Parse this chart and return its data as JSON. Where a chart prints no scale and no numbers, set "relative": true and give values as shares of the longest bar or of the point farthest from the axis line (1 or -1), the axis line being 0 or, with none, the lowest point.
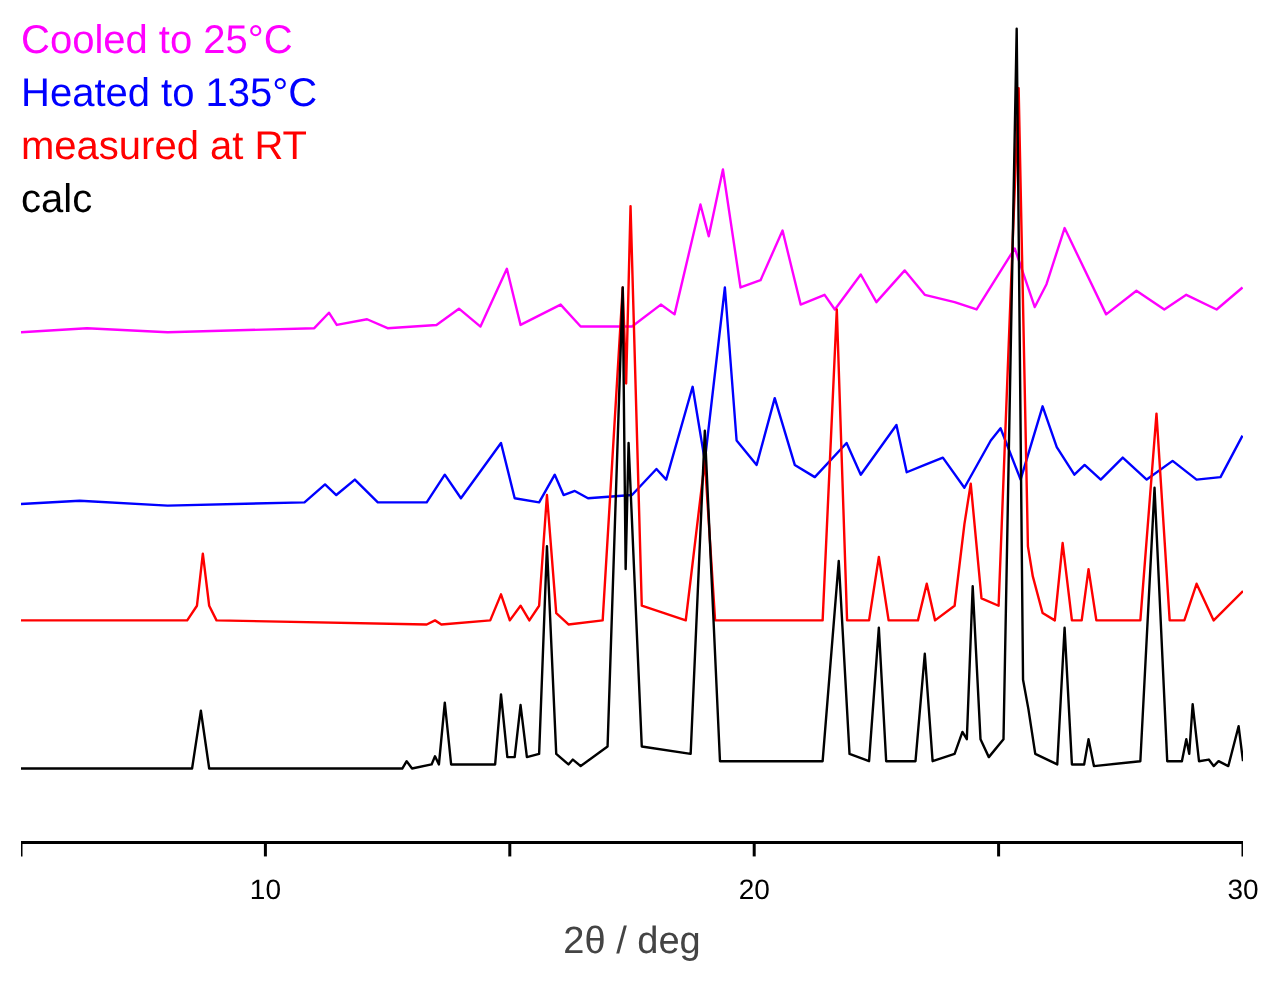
{
  "chart_data": {
    "type": "line",
    "relative": true,
    "xlabel": "2θ / deg",
    "xlim": [
      5,
      30
    ],
    "xticks": [
      {
        "value": 5,
        "label": null
      },
      10,
      {
        "value": 15,
        "label": null
      },
      20,
      {
        "value": 25,
        "label": null
      },
      30
    ],
    "tick_labels": "x",
    "grid": false,
    "marker": "none",
    "line_style": "solid",
    "series": [
      {
        "name": "Cooled to 25°C",
        "color": "#ff00ff",
        "x": [
          5,
          6.35,
          8,
          11.0,
          11.3,
          11.46,
          12.08,
          12.5,
          13.5,
          13.96,
          14.4,
          14.94,
          15.22,
          16.04,
          16.45,
          17.5,
          18.09,
          18.37,
          18.9,
          19.07,
          19.36,
          19.72,
          20.13,
          20.58,
          20.95,
          21.44,
          21.65,
          22.18,
          22.5,
          23.08,
          23.49,
          24.1,
          24.55,
          25.33,
          25.74,
          25.98,
          26.35,
          27.2,
          27.82,
          28.39,
          28.84,
          29.46,
          29.99
        ],
        "values": [
          0.627,
          0.632,
          0.627,
          0.632,
          0.651,
          0.636,
          0.643,
          0.632,
          0.636,
          0.656,
          0.634,
          0.705,
          0.636,
          0.661,
          0.634,
          0.634,
          0.661,
          0.649,
          0.784,
          0.745,
          0.827,
          0.682,
          0.691,
          0.752,
          0.661,
          0.673,
          0.655,
          0.698,
          0.664,
          0.703,
          0.673,
          0.664,
          0.655,
          0.73,
          0.658,
          0.686,
          0.755,
          0.649,
          0.678,
          0.655,
          0.673,
          0.655,
          0.682
        ]
      },
      {
        "name": "Heated to 135°C",
        "color": "#0000ff",
        "x": [
          5,
          6.2,
          8,
          10.8,
          11.22,
          11.45,
          11.83,
          12.3,
          13.3,
          13.67,
          14.0,
          14.82,
          15.1,
          15.6,
          15.92,
          16.1,
          16.33,
          16.6,
          17.5,
          18.0,
          18.2,
          18.74,
          18.99,
          19.4,
          19.64,
          20.05,
          20.42,
          20.83,
          21.24,
          21.89,
          22.18,
          22.91,
          23.12,
          23.49,
          23.86,
          24.3,
          24.84,
          25.04,
          25.45,
          25.9,
          26.19,
          26.55,
          26.76,
          27.09,
          27.54,
          28.03,
          28.56,
          29.05,
          29.54,
          29.99
        ],
        "values": [
          0.416,
          0.42,
          0.414,
          0.418,
          0.44,
          0.427,
          0.446,
          0.418,
          0.418,
          0.452,
          0.423,
          0.491,
          0.423,
          0.418,
          0.452,
          0.427,
          0.432,
          0.423,
          0.427,
          0.459,
          0.446,
          0.56,
          0.469,
          0.682,
          0.494,
          0.464,
          0.546,
          0.464,
          0.449,
          0.491,
          0.452,
          0.513,
          0.455,
          0.464,
          0.473,
          0.436,
          0.494,
          0.509,
          0.446,
          0.536,
          0.486,
          0.452,
          0.464,
          0.446,
          0.473,
          0.446,
          0.469,
          0.446,
          0.449,
          0.5
        ]
      },
      {
        "name": "measured at RT",
        "color": "#ff0000",
        "x": [
          5,
          8.4,
          8.6,
          8.72,
          8.85,
          9.0,
          13.3,
          13.47,
          13.6,
          14.6,
          14.82,
          15.0,
          15.22,
          15.4,
          15.6,
          15.76,
          15.95,
          16.2,
          16.9,
          17.31,
          17.38,
          17.47,
          17.7,
          18.6,
          18.99,
          19.2,
          21.4,
          21.69,
          21.9,
          22.35,
          22.55,
          22.75,
          23.35,
          23.53,
          23.7,
          24.1,
          24.3,
          24.43,
          24.65,
          25.0,
          25.41,
          25.6,
          25.7,
          25.9,
          26.15,
          26.31,
          26.5,
          26.7,
          26.84,
          27.0,
          27.9,
          28.23,
          28.5,
          28.8,
          29.05,
          29.4,
          30
        ],
        "values": [
          0.273,
          0.273,
          0.291,
          0.355,
          0.291,
          0.273,
          0.268,
          0.273,
          0.268,
          0.273,
          0.305,
          0.273,
          0.291,
          0.273,
          0.291,
          0.427,
          0.282,
          0.268,
          0.273,
          0.682,
          0.564,
          0.782,
          0.291,
          0.273,
          0.469,
          0.273,
          0.273,
          0.655,
          0.273,
          0.273,
          0.351,
          0.273,
          0.273,
          0.318,
          0.273,
          0.291,
          0.391,
          0.441,
          0.3,
          0.291,
          0.927,
          0.364,
          0.327,
          0.282,
          0.273,
          0.368,
          0.273,
          0.273,
          0.336,
          0.273,
          0.273,
          0.527,
          0.273,
          0.273,
          0.318,
          0.273,
          0.309
        ]
      },
      {
        "name": "calc",
        "color": "#000000",
        "x": [
          5,
          8.5,
          8.68,
          8.85,
          12.8,
          12.89,
          13.0,
          13.4,
          13.47,
          13.55,
          13.67,
          13.8,
          14.7,
          14.82,
          14.95,
          15.1,
          15.22,
          15.35,
          15.6,
          15.76,
          15.95,
          16.2,
          16.29,
          16.45,
          17.0,
          17.31,
          17.37,
          17.43,
          17.7,
          18.7,
          18.99,
          19.3,
          21.4,
          21.73,
          21.95,
          22.35,
          22.55,
          22.7,
          23.3,
          23.49,
          23.65,
          24.1,
          24.26,
          24.35,
          24.47,
          24.63,
          24.8,
          25.1,
          25.37,
          25.5,
          25.61,
          25.75,
          26.2,
          26.35,
          26.5,
          26.75,
          26.84,
          26.95,
          27.9,
          28.19,
          28.45,
          28.75,
          28.84,
          28.9,
          28.97,
          29.1,
          29.3,
          29.4,
          29.5,
          29.7,
          29.91,
          30
        ],
        "values": [
          0.091,
          0.091,
          0.162,
          0.091,
          0.091,
          0.1,
          0.091,
          0.096,
          0.106,
          0.096,
          0.172,
          0.096,
          0.096,
          0.182,
          0.105,
          0.105,
          0.169,
          0.105,
          0.109,
          0.364,
          0.109,
          0.096,
          0.102,
          0.094,
          0.118,
          0.682,
          0.336,
          0.491,
          0.118,
          0.109,
          0.506,
          0.1,
          0.1,
          0.346,
          0.109,
          0.1,
          0.264,
          0.1,
          0.1,
          0.232,
          0.1,
          0.109,
          0.136,
          0.127,
          0.315,
          0.127,
          0.105,
          0.127,
          1.0,
          0.2,
          0.164,
          0.109,
          0.096,
          0.264,
          0.096,
          0.096,
          0.127,
          0.094,
          0.1,
          0.436,
          0.1,
          0.1,
          0.127,
          0.109,
          0.17,
          0.1,
          0.102,
          0.094,
          0.1,
          0.094,
          0.143,
          0.1
        ]
      }
    ]
  }
}
